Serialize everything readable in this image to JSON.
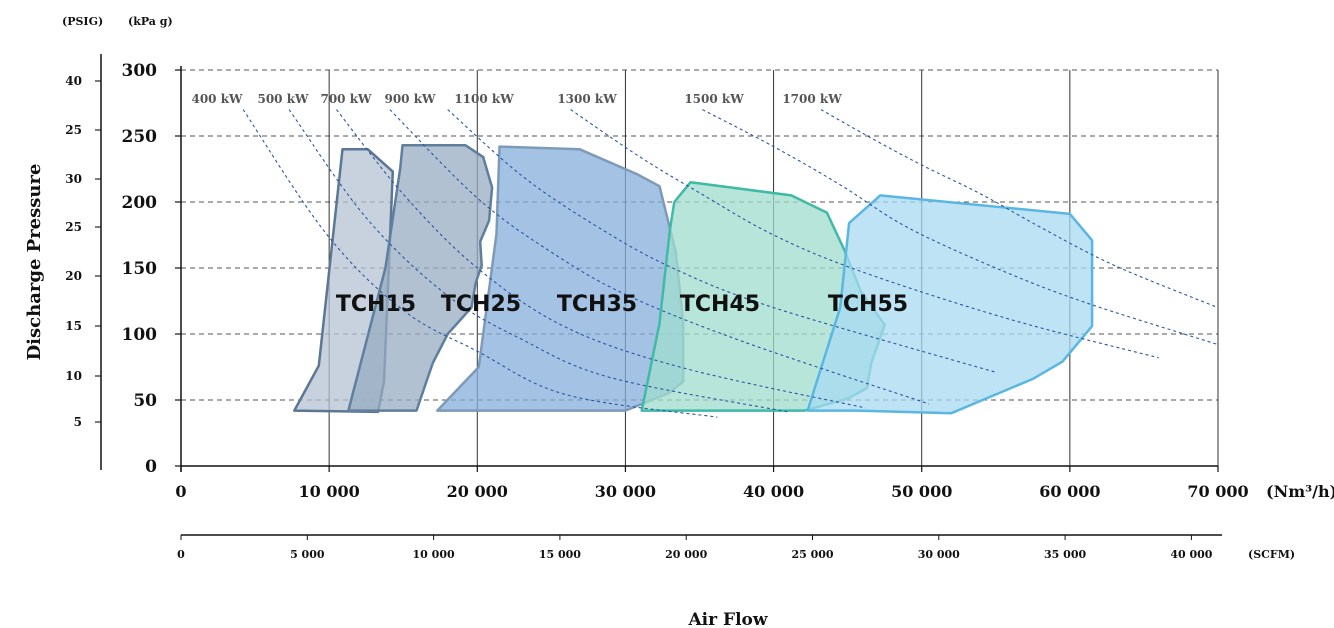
{
  "chart_data": {
    "type": "area",
    "title": "",
    "xlabel": "Air Flow",
    "ylabel": "Discharge Pressure",
    "unit_labels": {
      "primary_x": "(Nm³/h)",
      "secondary_x": "(SCFM)",
      "primary_y": "(kPa g)",
      "secondary_y": "(PSIG)"
    },
    "xlim": [
      0,
      70000
    ],
    "ylim": [
      0,
      300
    ],
    "x_ticks": [
      0,
      10000,
      20000,
      30000,
      40000,
      50000,
      60000,
      70000
    ],
    "x_tick_labels": [
      "0",
      "10 000",
      "20 000",
      "30 000",
      "40 000",
      "50 000",
      "60 000",
      "70 000"
    ],
    "y_ticks": [
      0,
      50,
      100,
      150,
      200,
      250,
      300
    ],
    "y_tick_labels": [
      "0",
      "50",
      "100",
      "150",
      "200",
      "250",
      "300"
    ],
    "scfm_ticks": [
      0,
      5000,
      10000,
      15000,
      20000,
      25000,
      30000,
      35000,
      40000
    ],
    "scfm_tick_labels": [
      "0",
      "5 000",
      "10 000",
      "15 000",
      "20 000",
      "25 000",
      "30 000",
      "35 000",
      "40 000"
    ],
    "psig_tick_labels": [
      "5",
      "10",
      "15",
      "20",
      "25",
      "30",
      "25",
      "40"
    ],
    "grid": true,
    "colors": {
      "TCH15": "#b6c3d3",
      "TCH15_edge": "#5c7794",
      "TCH25": "#97acc1",
      "TCH25_edge": "#5f7f9d",
      "TCH35": "#86addb",
      "TCH35_edge": "#7d9ab8",
      "TCH45": "#9fdccd",
      "TCH45_edge": "#3fbaa7",
      "TCH55": "#a7d9f2",
      "TCH55_edge": "#5ab7e1",
      "power_curve": "#2b55a3"
    },
    "series": [
      {
        "name": "TCH15",
        "points": [
          [
            7650,
            42
          ],
          [
            9300,
            76
          ],
          [
            10900,
            240
          ],
          [
            12600,
            240
          ],
          [
            14300,
            223
          ],
          [
            14050,
            156
          ],
          [
            13700,
            64
          ],
          [
            13300,
            41
          ]
        ]
      },
      {
        "name": "TCH25",
        "points": [
          [
            11300,
            42
          ],
          [
            13800,
            150
          ],
          [
            14800,
            226
          ],
          [
            14950,
            243
          ],
          [
            19200,
            243
          ],
          [
            20400,
            234
          ],
          [
            21000,
            211
          ],
          [
            20800,
            186
          ],
          [
            20200,
            170
          ],
          [
            20300,
            152
          ],
          [
            19900,
            139
          ],
          [
            19600,
            120
          ],
          [
            18000,
            100
          ],
          [
            17000,
            78
          ],
          [
            15900,
            42
          ]
        ]
      },
      {
        "name": "TCH35",
        "points": [
          [
            17300,
            42
          ],
          [
            20100,
            75
          ],
          [
            21300,
            176
          ],
          [
            21500,
            242
          ],
          [
            26900,
            240
          ],
          [
            30800,
            221
          ],
          [
            32300,
            212
          ],
          [
            33400,
            162
          ],
          [
            33900,
            108
          ],
          [
            33900,
            64
          ],
          [
            32900,
            55
          ],
          [
            30000,
            42
          ]
        ]
      },
      {
        "name": "TCH45",
        "points": [
          [
            31100,
            42
          ],
          [
            32300,
            108
          ],
          [
            33000,
            179
          ],
          [
            33300,
            200
          ],
          [
            34400,
            215
          ],
          [
            41200,
            205
          ],
          [
            43600,
            192
          ],
          [
            44800,
            163
          ],
          [
            45900,
            132
          ],
          [
            47500,
            107
          ],
          [
            46600,
            78
          ],
          [
            46300,
            59
          ],
          [
            45000,
            51
          ],
          [
            42100,
            42
          ]
        ]
      },
      {
        "name": "TCH55",
        "points": [
          [
            42300,
            42
          ],
          [
            44500,
            120
          ],
          [
            45100,
            184
          ],
          [
            47200,
            205
          ],
          [
            60000,
            191
          ],
          [
            61500,
            171
          ],
          [
            61500,
            106
          ],
          [
            59500,
            79
          ],
          [
            57500,
            66
          ],
          [
            52000,
            40
          ],
          [
            45500,
            42
          ]
        ]
      }
    ],
    "power_curves": [
      {
        "name": "400 kW",
        "points": [
          [
            4200,
            270
          ],
          [
            9800,
            176
          ],
          [
            15000,
            118
          ],
          [
            20000,
            87
          ],
          [
            26000,
            54
          ],
          [
            36200,
            37
          ]
        ]
      },
      {
        "name": "500 kW",
        "points": [
          [
            7300,
            270
          ],
          [
            12500,
            188
          ],
          [
            18000,
            129
          ],
          [
            23000,
            96
          ],
          [
            29000,
            67
          ],
          [
            41000,
            41
          ]
        ]
      },
      {
        "name": "700 kW",
        "points": [
          [
            10500,
            270
          ],
          [
            15000,
            206
          ],
          [
            20000,
            150
          ],
          [
            26000,
            105
          ],
          [
            34000,
            74
          ],
          [
            46200,
            44
          ]
        ]
      },
      {
        "name": "900 kW",
        "points": [
          [
            14100,
            270
          ],
          [
            20000,
            203
          ],
          [
            25000,
            162
          ],
          [
            30000,
            130
          ],
          [
            38000,
            94
          ],
          [
            50500,
            47
          ]
        ]
      },
      {
        "name": "1100 kW",
        "points": [
          [
            18000,
            270
          ],
          [
            23000,
            220
          ],
          [
            28000,
            182
          ],
          [
            33000,
            151
          ],
          [
            40000,
            120
          ],
          [
            55000,
            71
          ]
        ]
      },
      {
        "name": "1300 kW",
        "points": [
          [
            26300,
            270
          ],
          [
            31000,
            234
          ],
          [
            35000,
            207
          ],
          [
            40000,
            175
          ],
          [
            46000,
            147
          ],
          [
            56000,
            111
          ],
          [
            66000,
            82
          ]
        ]
      },
      {
        "name": "1500 kW",
        "points": [
          [
            35200,
            270
          ],
          [
            40000,
            242
          ],
          [
            44500,
            213
          ],
          [
            49000,
            181
          ],
          [
            55000,
            150
          ],
          [
            61000,
            124
          ],
          [
            70000,
            92
          ]
        ]
      },
      {
        "name": "1700 kW",
        "points": [
          [
            43200,
            270
          ],
          [
            46500,
            249
          ],
          [
            50000,
            228
          ],
          [
            54000,
            206
          ],
          [
            58000,
            181
          ],
          [
            63000,
            152
          ],
          [
            70000,
            120
          ]
        ]
      }
    ]
  }
}
